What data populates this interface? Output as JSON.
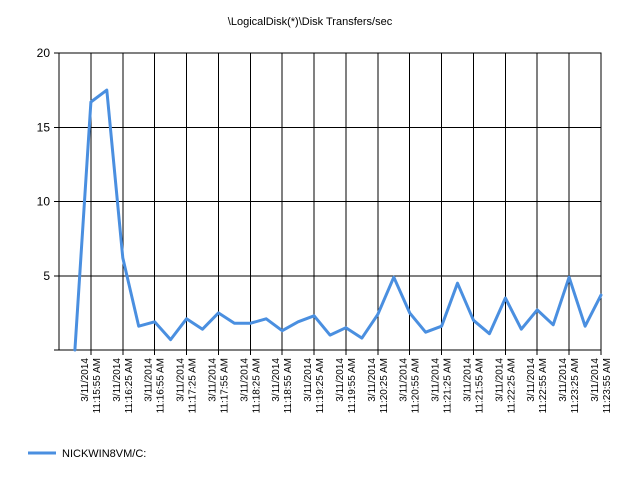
{
  "chart_data": {
    "type": "line",
    "title": "\\LogicalDisk(*)\\Disk Transfers/sec",
    "xlabel": "",
    "ylabel": "",
    "ylim": [
      0,
      20
    ],
    "yticks": [
      5,
      10,
      15,
      20
    ],
    "grid": true,
    "legend_position": "bottom-left",
    "categories": [
      "3/11/2014 11:15:55 AM",
      "3/11/2014 11:16:25 AM",
      "3/11/2014 11:16:55 AM",
      "3/11/2014 11:17:25 AM",
      "3/11/2014 11:17:55 AM",
      "3/11/2014 11:18:25 AM",
      "3/11/2014 11:18:55 AM",
      "3/11/2014 11:19:25 AM",
      "3/11/2014 11:19:55 AM",
      "3/11/2014 11:20:25 AM",
      "3/11/2014 11:20:55 AM",
      "3/11/2014 11:21:25 AM",
      "3/11/2014 11:21:55 AM",
      "3/11/2014 11:22:25 AM",
      "3/11/2014 11:22:55 AM",
      "3/11/2014 11:23:25 AM",
      "3/11/2014 11:23:55 AM"
    ],
    "series": [
      {
        "name": "NICKWIN8VM/C:",
        "color": "#4a8fe0",
        "x": [
          0.5,
          1,
          1.5,
          2,
          2.5,
          3,
          3.5,
          4,
          4.5,
          5,
          5.5,
          6,
          6.5,
          7,
          7.5,
          8,
          8.5,
          9,
          9.5,
          10,
          10.5,
          11,
          11.5,
          12,
          12.5,
          13,
          13.5,
          14,
          14.5,
          15,
          15.5,
          16,
          16.5,
          17
        ],
        "values": [
          0,
          16.7,
          17.5,
          6.2,
          1.6,
          1.9,
          0.7,
          2.1,
          1.4,
          2.5,
          1.8,
          1.8,
          2.1,
          1.3,
          1.9,
          2.3,
          1.0,
          1.5,
          0.8,
          2.4,
          4.9,
          2.5,
          1.2,
          1.6,
          4.5,
          2.0,
          1.1,
          3.5,
          1.4,
          2.7,
          1.7,
          4.9,
          1.6,
          3.7
        ]
      }
    ]
  }
}
